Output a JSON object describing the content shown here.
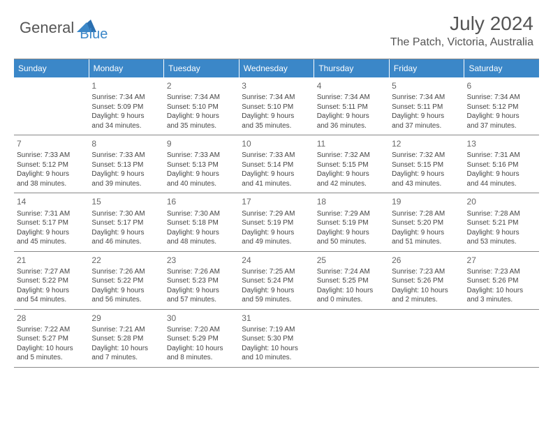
{
  "brand": {
    "part1": "General",
    "part2": "Blue"
  },
  "title": "July 2024",
  "location": "The Patch, Victoria, Australia",
  "colors": {
    "header_bg": "#3b87c8",
    "header_text": "#ffffff",
    "border": "#888888",
    "text": "#444444",
    "title_text": "#555555"
  },
  "weekdays": [
    "Sunday",
    "Monday",
    "Tuesday",
    "Wednesday",
    "Thursday",
    "Friday",
    "Saturday"
  ],
  "weeks": [
    [
      null,
      {
        "n": "1",
        "sr": "Sunrise: 7:34 AM",
        "ss": "Sunset: 5:09 PM",
        "d1": "Daylight: 9 hours",
        "d2": "and 34 minutes."
      },
      {
        "n": "2",
        "sr": "Sunrise: 7:34 AM",
        "ss": "Sunset: 5:10 PM",
        "d1": "Daylight: 9 hours",
        "d2": "and 35 minutes."
      },
      {
        "n": "3",
        "sr": "Sunrise: 7:34 AM",
        "ss": "Sunset: 5:10 PM",
        "d1": "Daylight: 9 hours",
        "d2": "and 35 minutes."
      },
      {
        "n": "4",
        "sr": "Sunrise: 7:34 AM",
        "ss": "Sunset: 5:11 PM",
        "d1": "Daylight: 9 hours",
        "d2": "and 36 minutes."
      },
      {
        "n": "5",
        "sr": "Sunrise: 7:34 AM",
        "ss": "Sunset: 5:11 PM",
        "d1": "Daylight: 9 hours",
        "d2": "and 37 minutes."
      },
      {
        "n": "6",
        "sr": "Sunrise: 7:34 AM",
        "ss": "Sunset: 5:12 PM",
        "d1": "Daylight: 9 hours",
        "d2": "and 37 minutes."
      }
    ],
    [
      {
        "n": "7",
        "sr": "Sunrise: 7:33 AM",
        "ss": "Sunset: 5:12 PM",
        "d1": "Daylight: 9 hours",
        "d2": "and 38 minutes."
      },
      {
        "n": "8",
        "sr": "Sunrise: 7:33 AM",
        "ss": "Sunset: 5:13 PM",
        "d1": "Daylight: 9 hours",
        "d2": "and 39 minutes."
      },
      {
        "n": "9",
        "sr": "Sunrise: 7:33 AM",
        "ss": "Sunset: 5:13 PM",
        "d1": "Daylight: 9 hours",
        "d2": "and 40 minutes."
      },
      {
        "n": "10",
        "sr": "Sunrise: 7:33 AM",
        "ss": "Sunset: 5:14 PM",
        "d1": "Daylight: 9 hours",
        "d2": "and 41 minutes."
      },
      {
        "n": "11",
        "sr": "Sunrise: 7:32 AM",
        "ss": "Sunset: 5:15 PM",
        "d1": "Daylight: 9 hours",
        "d2": "and 42 minutes."
      },
      {
        "n": "12",
        "sr": "Sunrise: 7:32 AM",
        "ss": "Sunset: 5:15 PM",
        "d1": "Daylight: 9 hours",
        "d2": "and 43 minutes."
      },
      {
        "n": "13",
        "sr": "Sunrise: 7:31 AM",
        "ss": "Sunset: 5:16 PM",
        "d1": "Daylight: 9 hours",
        "d2": "and 44 minutes."
      }
    ],
    [
      {
        "n": "14",
        "sr": "Sunrise: 7:31 AM",
        "ss": "Sunset: 5:17 PM",
        "d1": "Daylight: 9 hours",
        "d2": "and 45 minutes."
      },
      {
        "n": "15",
        "sr": "Sunrise: 7:30 AM",
        "ss": "Sunset: 5:17 PM",
        "d1": "Daylight: 9 hours",
        "d2": "and 46 minutes."
      },
      {
        "n": "16",
        "sr": "Sunrise: 7:30 AM",
        "ss": "Sunset: 5:18 PM",
        "d1": "Daylight: 9 hours",
        "d2": "and 48 minutes."
      },
      {
        "n": "17",
        "sr": "Sunrise: 7:29 AM",
        "ss": "Sunset: 5:19 PM",
        "d1": "Daylight: 9 hours",
        "d2": "and 49 minutes."
      },
      {
        "n": "18",
        "sr": "Sunrise: 7:29 AM",
        "ss": "Sunset: 5:19 PM",
        "d1": "Daylight: 9 hours",
        "d2": "and 50 minutes."
      },
      {
        "n": "19",
        "sr": "Sunrise: 7:28 AM",
        "ss": "Sunset: 5:20 PM",
        "d1": "Daylight: 9 hours",
        "d2": "and 51 minutes."
      },
      {
        "n": "20",
        "sr": "Sunrise: 7:28 AM",
        "ss": "Sunset: 5:21 PM",
        "d1": "Daylight: 9 hours",
        "d2": "and 53 minutes."
      }
    ],
    [
      {
        "n": "21",
        "sr": "Sunrise: 7:27 AM",
        "ss": "Sunset: 5:22 PM",
        "d1": "Daylight: 9 hours",
        "d2": "and 54 minutes."
      },
      {
        "n": "22",
        "sr": "Sunrise: 7:26 AM",
        "ss": "Sunset: 5:22 PM",
        "d1": "Daylight: 9 hours",
        "d2": "and 56 minutes."
      },
      {
        "n": "23",
        "sr": "Sunrise: 7:26 AM",
        "ss": "Sunset: 5:23 PM",
        "d1": "Daylight: 9 hours",
        "d2": "and 57 minutes."
      },
      {
        "n": "24",
        "sr": "Sunrise: 7:25 AM",
        "ss": "Sunset: 5:24 PM",
        "d1": "Daylight: 9 hours",
        "d2": "and 59 minutes."
      },
      {
        "n": "25",
        "sr": "Sunrise: 7:24 AM",
        "ss": "Sunset: 5:25 PM",
        "d1": "Daylight: 10 hours",
        "d2": "and 0 minutes."
      },
      {
        "n": "26",
        "sr": "Sunrise: 7:23 AM",
        "ss": "Sunset: 5:26 PM",
        "d1": "Daylight: 10 hours",
        "d2": "and 2 minutes."
      },
      {
        "n": "27",
        "sr": "Sunrise: 7:23 AM",
        "ss": "Sunset: 5:26 PM",
        "d1": "Daylight: 10 hours",
        "d2": "and 3 minutes."
      }
    ],
    [
      {
        "n": "28",
        "sr": "Sunrise: 7:22 AM",
        "ss": "Sunset: 5:27 PM",
        "d1": "Daylight: 10 hours",
        "d2": "and 5 minutes."
      },
      {
        "n": "29",
        "sr": "Sunrise: 7:21 AM",
        "ss": "Sunset: 5:28 PM",
        "d1": "Daylight: 10 hours",
        "d2": "and 7 minutes."
      },
      {
        "n": "30",
        "sr": "Sunrise: 7:20 AM",
        "ss": "Sunset: 5:29 PM",
        "d1": "Daylight: 10 hours",
        "d2": "and 8 minutes."
      },
      {
        "n": "31",
        "sr": "Sunrise: 7:19 AM",
        "ss": "Sunset: 5:30 PM",
        "d1": "Daylight: 10 hours",
        "d2": "and 10 minutes."
      },
      null,
      null,
      null
    ]
  ]
}
